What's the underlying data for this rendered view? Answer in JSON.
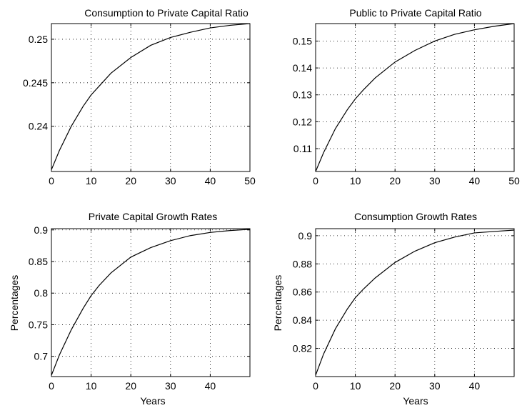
{
  "chart_data": [
    {
      "type": "line",
      "title": "Consumption to Private Capital Ratio",
      "xlabel": "",
      "ylabel": "",
      "xlim": [
        0,
        50
      ],
      "ylim": [
        0.2348,
        0.2518
      ],
      "xticks": [
        0,
        10,
        20,
        30,
        40,
        50
      ],
      "xtick_labels": [
        "0",
        "10",
        "20",
        "30",
        "40",
        "50"
      ],
      "yticks": [
        0.24,
        0.245,
        0.25
      ],
      "ytick_labels": [
        "0.24",
        "0.245",
        "0.25"
      ],
      "grid": true,
      "series": [
        {
          "x": [
            0,
            2,
            5,
            8,
            10,
            12,
            15,
            20,
            25,
            30,
            35,
            40,
            45,
            50
          ],
          "y": [
            0.235,
            0.2372,
            0.24,
            0.2423,
            0.2436,
            0.2446,
            0.2461,
            0.2479,
            0.2493,
            0.2502,
            0.2508,
            0.2513,
            0.2516,
            0.2518
          ]
        }
      ]
    },
    {
      "type": "line",
      "title": "Public to Private Capital Ratio",
      "xlabel": "",
      "ylabel": "",
      "xlim": [
        0,
        50
      ],
      "ylim": [
        0.1015,
        0.1565
      ],
      "xticks": [
        0,
        10,
        20,
        30,
        40,
        50
      ],
      "xtick_labels": [
        "0",
        "10",
        "20",
        "30",
        "40",
        "50"
      ],
      "yticks": [
        0.11,
        0.12,
        0.13,
        0.14,
        0.15
      ],
      "ytick_labels": [
        "0.11",
        "0.12",
        "0.13",
        "0.14",
        "0.15"
      ],
      "grid": true,
      "series": [
        {
          "x": [
            0,
            2,
            5,
            8,
            10,
            12,
            15,
            20,
            25,
            30,
            35,
            40,
            45,
            50
          ],
          "y": [
            0.1015,
            0.1085,
            0.1175,
            0.1245,
            0.1285,
            0.1318,
            0.1363,
            0.1422,
            0.1465,
            0.15,
            0.1525,
            0.1542,
            0.1555,
            0.1565
          ]
        }
      ]
    },
    {
      "type": "line",
      "title": "Private Capital Growth Rates",
      "xlabel": "Years",
      "ylabel": "Percentages",
      "xlim": [
        0,
        50
      ],
      "ylim": [
        0.668,
        0.902
      ],
      "xticks": [
        0,
        10,
        20,
        30,
        40
      ],
      "xtick_labels": [
        "0",
        "10",
        "20",
        "30",
        "40"
      ],
      "yticks": [
        0.7,
        0.75,
        0.8,
        0.85,
        0.9
      ],
      "ytick_labels": [
        "0.7",
        "0.75",
        "0.8",
        "0.85",
        "0.9"
      ],
      "grid": true,
      "series": [
        {
          "x": [
            0,
            2,
            5,
            8,
            10,
            12,
            15,
            20,
            25,
            30,
            35,
            40,
            45,
            50
          ],
          "y": [
            0.67,
            0.702,
            0.742,
            0.776,
            0.796,
            0.812,
            0.832,
            0.857,
            0.872,
            0.883,
            0.891,
            0.896,
            0.899,
            0.901
          ]
        }
      ]
    },
    {
      "type": "line",
      "title": "Consumption Growth Rates",
      "xlabel": "Years",
      "ylabel": "Percentages",
      "xlim": [
        0,
        50
      ],
      "ylim": [
        0.8,
        0.905
      ],
      "xticks": [
        0,
        10,
        20,
        30,
        40
      ],
      "xtick_labels": [
        "0",
        "10",
        "20",
        "30",
        "40"
      ],
      "yticks": [
        0.82,
        0.84,
        0.86,
        0.88,
        0.9
      ],
      "ytick_labels": [
        "0.82",
        "0.84",
        "0.86",
        "0.88",
        "0.9"
      ],
      "grid": true,
      "series": [
        {
          "x": [
            0,
            2,
            5,
            8,
            10,
            12,
            15,
            20,
            25,
            30,
            35,
            40,
            45,
            50
          ],
          "y": [
            0.801,
            0.816,
            0.834,
            0.848,
            0.856,
            0.862,
            0.87,
            0.881,
            0.889,
            0.895,
            0.899,
            0.902,
            0.903,
            0.904
          ]
        }
      ]
    }
  ]
}
